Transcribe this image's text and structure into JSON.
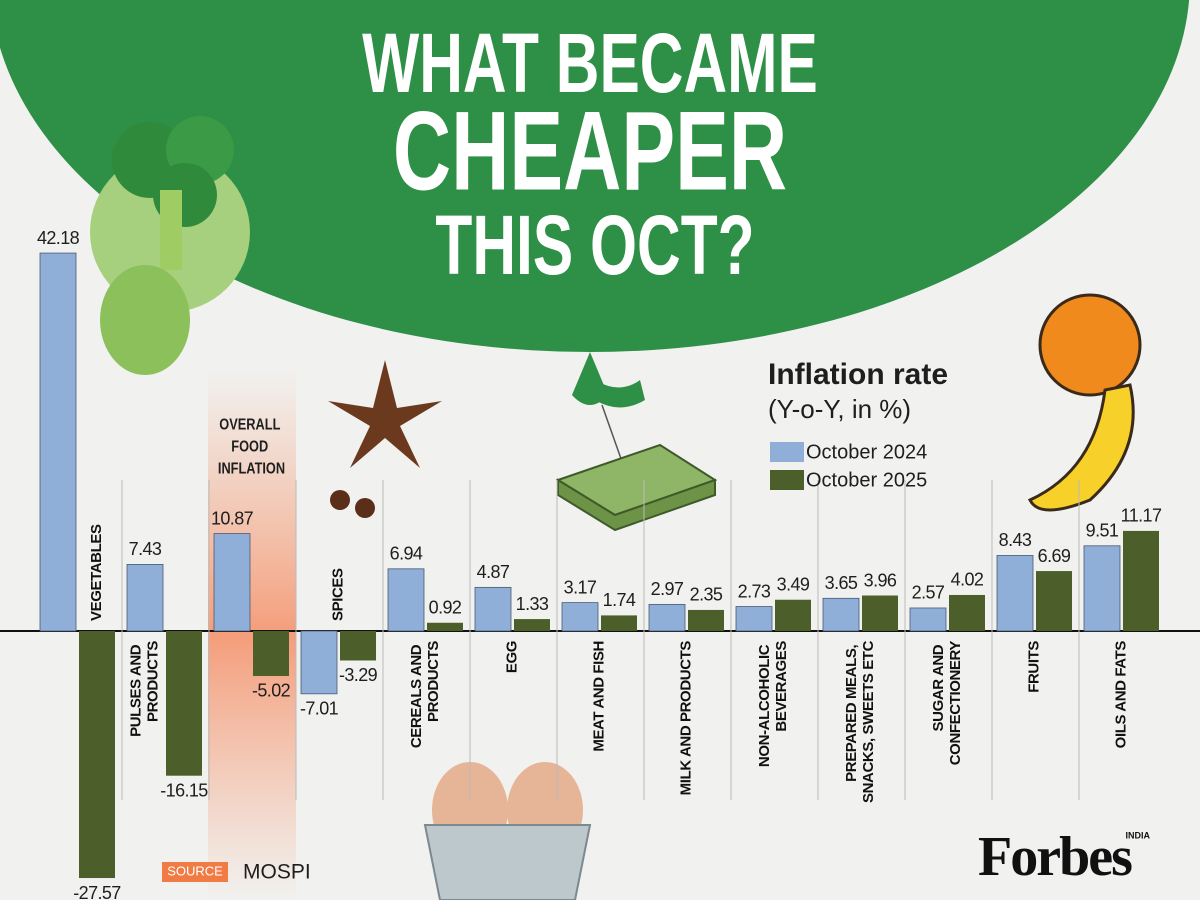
{
  "chart_data": {
    "type": "bar",
    "title": [
      "WHAT BECAME",
      "CHEAPER",
      "THIS OCT?"
    ],
    "legend_title": "Inflation rate",
    "legend_subtitle": "(Y-o-Y, in %)",
    "categories": [
      "VEGETABLES",
      "PULSES AND PRODUCTS",
      "OVERALL FOOD INFLATION",
      "SPICES",
      "CEREALS AND PRODUCTS",
      "EGG",
      "MEAT AND FISH",
      "MILK AND PRODUCTS",
      "NON-ALCOHOLIC BEVERAGES",
      "PREPARED MEALS, SNACKS, SWEETS ETC",
      "SUGAR AND CONFECTIONERY",
      "FRUITS",
      "OILS AND FATS"
    ],
    "series": [
      {
        "name": "October 2024",
        "color": "#8fafd8",
        "values": [
          42.18,
          7.43,
          10.87,
          -7.01,
          6.94,
          4.87,
          3.17,
          2.97,
          2.73,
          3.65,
          2.57,
          8.43,
          9.51
        ]
      },
      {
        "name": "October 2025",
        "color": "#4c5e2a",
        "values": [
          -27.57,
          -16.15,
          -5.02,
          -3.29,
          0.92,
          1.33,
          1.74,
          2.35,
          3.49,
          3.96,
          4.02,
          6.69,
          11.17
        ]
      }
    ],
    "source_label": "SOURCE",
    "source": "MOSPI",
    "brand": "Forbes",
    "brand_edition": "INDIA"
  }
}
